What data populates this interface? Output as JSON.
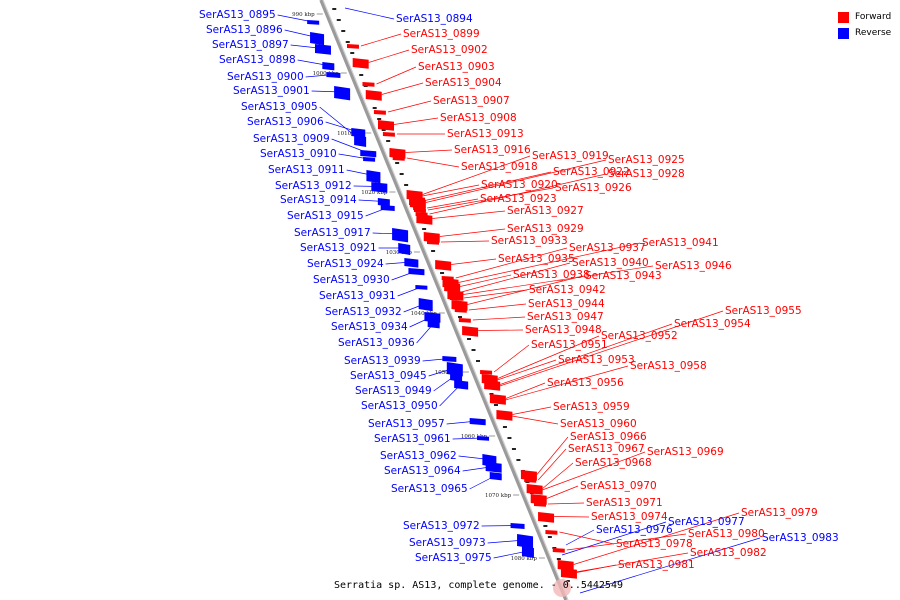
{
  "legend": {
    "forward_label": "Forward",
    "reverse_label": "Reverse",
    "forward_color": "#ff0000",
    "reverse_color": "#0000ff"
  },
  "caption": "Serratia sp. AS13, complete genome. - 0..5442549",
  "ticks": [
    "990 kbp",
    "1000 kbp",
    "1010 kbp",
    "1020 kbp",
    "1030 kbp",
    "1040 kbp",
    "1050 kbp",
    "1060 kbp",
    "1070 kbp",
    "1080 kbp"
  ],
  "reverse_genes": [
    "SerAS13_0895",
    "SerAS13_0896",
    "SerAS13_0897",
    "SerAS13_0898",
    "SerAS13_0900",
    "SerAS13_0901",
    "SerAS13_0905",
    "SerAS13_0906",
    "SerAS13_0909",
    "SerAS13_0910",
    "SerAS13_0911",
    "SerAS13_0912",
    "SerAS13_0914",
    "SerAS13_0915",
    "SerAS13_0917",
    "SerAS13_0921",
    "SerAS13_0924",
    "SerAS13_0930",
    "SerAS13_0931",
    "SerAS13_0932",
    "SerAS13_0934",
    "SerAS13_0936",
    "SerAS13_0939",
    "SerAS13_0945",
    "SerAS13_0949",
    "SerAS13_0950",
    "SerAS13_0957",
    "SerAS13_0961",
    "SerAS13_0962",
    "SerAS13_0964",
    "SerAS13_0965",
    "SerAS13_0972",
    "SerAS13_0973",
    "SerAS13_0975"
  ],
  "reverse_right_genes": [
    "SerAS13_0894",
    "SerAS13_0976",
    "SerAS13_0977",
    "SerAS13_0983"
  ],
  "forward_genes": [
    "SerAS13_0899",
    "SerAS13_0902",
    "SerAS13_0903",
    "SerAS13_0904",
    "SerAS13_0907",
    "SerAS13_0908",
    "SerAS13_0913",
    "SerAS13_0916",
    "SerAS13_0918",
    "SerAS13_0919",
    "SerAS13_0920",
    "SerAS13_0922",
    "SerAS13_0923",
    "SerAS13_0925",
    "SerAS13_0926",
    "SerAS13_0927",
    "SerAS13_0928",
    "SerAS13_0929",
    "SerAS13_0933",
    "SerAS13_0935",
    "SerAS13_0937",
    "SerAS13_0938",
    "SerAS13_0940",
    "SerAS13_0941",
    "SerAS13_0942",
    "SerAS13_0943",
    "SerAS13_0944",
    "SerAS13_0946",
    "SerAS13_0947",
    "SerAS13_0948",
    "SerAS13_0951",
    "SerAS13_0952",
    "SerAS13_0953",
    "SerAS13_0954",
    "SerAS13_0955",
    "SerAS13_0956",
    "SerAS13_0958",
    "SerAS13_0959",
    "SerAS13_0960",
    "SerAS13_0966",
    "SerAS13_0967",
    "SerAS13_0968",
    "SerAS13_0969",
    "SerAS13_0970",
    "SerAS13_0971",
    "SerAS13_0974",
    "SerAS13_0978",
    "SerAS13_0979",
    "SerAS13_0980",
    "SerAS13_0981",
    "SerAS13_0982"
  ]
}
